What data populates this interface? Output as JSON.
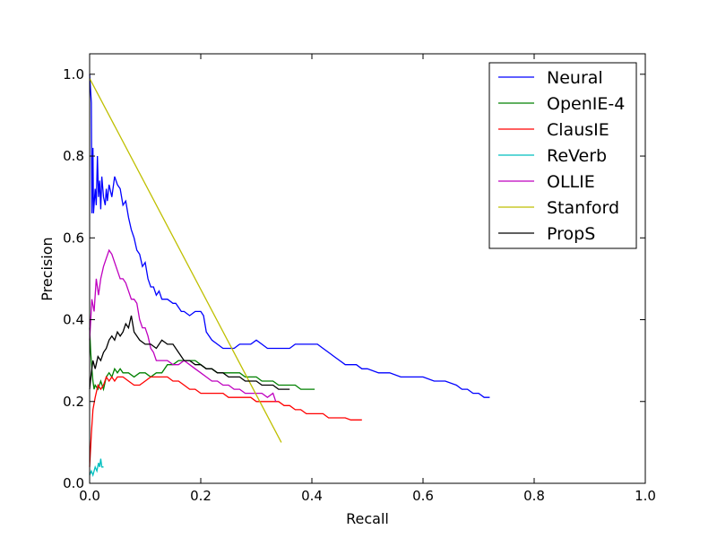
{
  "chart_data": {
    "type": "line",
    "xlabel": "Recall",
    "ylabel": "Precision",
    "xlim": [
      0,
      1.0
    ],
    "ylim": [
      0,
      1.05
    ],
    "xticks": [
      "0.0",
      "0.2",
      "0.4",
      "0.6",
      "0.8",
      "1.0"
    ],
    "xtick_values": [
      0,
      0.2,
      0.4,
      0.6,
      0.8,
      1.0
    ],
    "yticks": [
      "0.0",
      "0.2",
      "0.4",
      "0.6",
      "0.8",
      "1.0"
    ],
    "ytick_values": [
      0,
      0.2,
      0.4,
      0.6,
      0.8,
      1.0
    ],
    "grid": false,
    "legend_position": "top-right",
    "series": [
      {
        "name": "Neural",
        "color": "#0000ff",
        "points": [
          [
            0.0,
            1.0
          ],
          [
            0.003,
            0.93
          ],
          [
            0.004,
            0.66
          ],
          [
            0.006,
            0.82
          ],
          [
            0.007,
            0.66
          ],
          [
            0.01,
            0.72
          ],
          [
            0.012,
            0.68
          ],
          [
            0.014,
            0.8
          ],
          [
            0.016,
            0.7
          ],
          [
            0.018,
            0.74
          ],
          [
            0.02,
            0.67
          ],
          [
            0.022,
            0.75
          ],
          [
            0.025,
            0.7
          ],
          [
            0.028,
            0.68
          ],
          [
            0.03,
            0.72
          ],
          [
            0.032,
            0.69
          ],
          [
            0.035,
            0.73
          ],
          [
            0.04,
            0.7
          ],
          [
            0.045,
            0.75
          ],
          [
            0.05,
            0.73
          ],
          [
            0.055,
            0.72
          ],
          [
            0.06,
            0.68
          ],
          [
            0.065,
            0.69
          ],
          [
            0.07,
            0.65
          ],
          [
            0.075,
            0.62
          ],
          [
            0.08,
            0.6
          ],
          [
            0.085,
            0.57
          ],
          [
            0.09,
            0.56
          ],
          [
            0.095,
            0.53
          ],
          [
            0.1,
            0.54
          ],
          [
            0.105,
            0.5
          ],
          [
            0.11,
            0.48
          ],
          [
            0.115,
            0.48
          ],
          [
            0.12,
            0.46
          ],
          [
            0.125,
            0.47
          ],
          [
            0.13,
            0.45
          ],
          [
            0.135,
            0.45
          ],
          [
            0.14,
            0.45
          ],
          [
            0.15,
            0.44
          ],
          [
            0.155,
            0.44
          ],
          [
            0.16,
            0.43
          ],
          [
            0.165,
            0.42
          ],
          [
            0.17,
            0.42
          ],
          [
            0.18,
            0.41
          ],
          [
            0.19,
            0.42
          ],
          [
            0.2,
            0.42
          ],
          [
            0.205,
            0.41
          ],
          [
            0.21,
            0.37
          ],
          [
            0.215,
            0.36
          ],
          [
            0.22,
            0.35
          ],
          [
            0.23,
            0.34
          ],
          [
            0.24,
            0.33
          ],
          [
            0.25,
            0.33
          ],
          [
            0.26,
            0.33
          ],
          [
            0.27,
            0.34
          ],
          [
            0.28,
            0.34
          ],
          [
            0.29,
            0.34
          ],
          [
            0.3,
            0.35
          ],
          [
            0.31,
            0.34
          ],
          [
            0.32,
            0.33
          ],
          [
            0.33,
            0.33
          ],
          [
            0.34,
            0.33
          ],
          [
            0.35,
            0.33
          ],
          [
            0.36,
            0.33
          ],
          [
            0.37,
            0.34
          ],
          [
            0.38,
            0.34
          ],
          [
            0.39,
            0.34
          ],
          [
            0.4,
            0.34
          ],
          [
            0.41,
            0.34
          ],
          [
            0.42,
            0.33
          ],
          [
            0.43,
            0.32
          ],
          [
            0.44,
            0.31
          ],
          [
            0.45,
            0.3
          ],
          [
            0.46,
            0.29
          ],
          [
            0.47,
            0.29
          ],
          [
            0.48,
            0.29
          ],
          [
            0.49,
            0.28
          ],
          [
            0.5,
            0.28
          ],
          [
            0.52,
            0.27
          ],
          [
            0.54,
            0.27
          ],
          [
            0.56,
            0.26
          ],
          [
            0.58,
            0.26
          ],
          [
            0.6,
            0.26
          ],
          [
            0.62,
            0.25
          ],
          [
            0.64,
            0.25
          ],
          [
            0.66,
            0.24
          ],
          [
            0.67,
            0.23
          ],
          [
            0.68,
            0.23
          ],
          [
            0.69,
            0.22
          ],
          [
            0.7,
            0.22
          ],
          [
            0.71,
            0.21
          ],
          [
            0.72,
            0.21
          ]
        ]
      },
      {
        "name": "OpenIE-4",
        "color": "#008000",
        "points": [
          [
            0.0,
            0.38
          ],
          [
            0.002,
            0.32
          ],
          [
            0.004,
            0.28
          ],
          [
            0.006,
            0.25
          ],
          [
            0.008,
            0.23
          ],
          [
            0.01,
            0.24
          ],
          [
            0.015,
            0.23
          ],
          [
            0.02,
            0.25
          ],
          [
            0.025,
            0.23
          ],
          [
            0.03,
            0.26
          ],
          [
            0.035,
            0.27
          ],
          [
            0.04,
            0.26
          ],
          [
            0.045,
            0.28
          ],
          [
            0.05,
            0.27
          ],
          [
            0.055,
            0.28
          ],
          [
            0.06,
            0.27
          ],
          [
            0.07,
            0.27
          ],
          [
            0.08,
            0.26
          ],
          [
            0.09,
            0.27
          ],
          [
            0.1,
            0.27
          ],
          [
            0.11,
            0.26
          ],
          [
            0.12,
            0.27
          ],
          [
            0.13,
            0.27
          ],
          [
            0.14,
            0.29
          ],
          [
            0.15,
            0.29
          ],
          [
            0.16,
            0.3
          ],
          [
            0.17,
            0.3
          ],
          [
            0.18,
            0.3
          ],
          [
            0.19,
            0.3
          ],
          [
            0.2,
            0.29
          ],
          [
            0.21,
            0.28
          ],
          [
            0.22,
            0.28
          ],
          [
            0.23,
            0.27
          ],
          [
            0.24,
            0.27
          ],
          [
            0.25,
            0.27
          ],
          [
            0.26,
            0.27
          ],
          [
            0.27,
            0.27
          ],
          [
            0.28,
            0.26
          ],
          [
            0.29,
            0.26
          ],
          [
            0.3,
            0.26
          ],
          [
            0.31,
            0.25
          ],
          [
            0.32,
            0.25
          ],
          [
            0.33,
            0.25
          ],
          [
            0.34,
            0.24
          ],
          [
            0.35,
            0.24
          ],
          [
            0.36,
            0.24
          ],
          [
            0.37,
            0.24
          ],
          [
            0.38,
            0.23
          ],
          [
            0.39,
            0.23
          ],
          [
            0.4,
            0.23
          ],
          [
            0.405,
            0.23
          ]
        ]
      },
      {
        "name": "ClausIE",
        "color": "#ff0000",
        "points": [
          [
            0.0,
            0.04
          ],
          [
            0.003,
            0.12
          ],
          [
            0.006,
            0.18
          ],
          [
            0.01,
            0.21
          ],
          [
            0.015,
            0.24
          ],
          [
            0.02,
            0.23
          ],
          [
            0.025,
            0.24
          ],
          [
            0.03,
            0.26
          ],
          [
            0.035,
            0.25
          ],
          [
            0.04,
            0.26
          ],
          [
            0.045,
            0.25
          ],
          [
            0.05,
            0.26
          ],
          [
            0.06,
            0.26
          ],
          [
            0.07,
            0.25
          ],
          [
            0.08,
            0.24
          ],
          [
            0.09,
            0.24
          ],
          [
            0.1,
            0.25
          ],
          [
            0.11,
            0.26
          ],
          [
            0.12,
            0.26
          ],
          [
            0.13,
            0.26
          ],
          [
            0.14,
            0.26
          ],
          [
            0.15,
            0.25
          ],
          [
            0.16,
            0.25
          ],
          [
            0.17,
            0.24
          ],
          [
            0.18,
            0.23
          ],
          [
            0.19,
            0.23
          ],
          [
            0.2,
            0.22
          ],
          [
            0.21,
            0.22
          ],
          [
            0.22,
            0.22
          ],
          [
            0.23,
            0.22
          ],
          [
            0.24,
            0.22
          ],
          [
            0.25,
            0.21
          ],
          [
            0.26,
            0.21
          ],
          [
            0.27,
            0.21
          ],
          [
            0.28,
            0.21
          ],
          [
            0.29,
            0.21
          ],
          [
            0.3,
            0.2
          ],
          [
            0.31,
            0.2
          ],
          [
            0.32,
            0.2
          ],
          [
            0.33,
            0.2
          ],
          [
            0.34,
            0.2
          ],
          [
            0.35,
            0.19
          ],
          [
            0.36,
            0.19
          ],
          [
            0.37,
            0.18
          ],
          [
            0.38,
            0.18
          ],
          [
            0.39,
            0.17
          ],
          [
            0.4,
            0.17
          ],
          [
            0.41,
            0.17
          ],
          [
            0.42,
            0.17
          ],
          [
            0.43,
            0.16
          ],
          [
            0.44,
            0.16
          ],
          [
            0.45,
            0.16
          ],
          [
            0.46,
            0.16
          ],
          [
            0.47,
            0.155
          ],
          [
            0.48,
            0.155
          ],
          [
            0.49,
            0.155
          ]
        ]
      },
      {
        "name": "ReVerb",
        "color": "#00bfbf",
        "points": [
          [
            0.0,
            0.02
          ],
          [
            0.003,
            0.03
          ],
          [
            0.006,
            0.02
          ],
          [
            0.01,
            0.04
          ],
          [
            0.013,
            0.03
          ],
          [
            0.016,
            0.05
          ],
          [
            0.018,
            0.04
          ],
          [
            0.02,
            0.06
          ],
          [
            0.022,
            0.04
          ],
          [
            0.025,
            0.04
          ]
        ]
      },
      {
        "name": "OLLIE",
        "color": "#bf00bf",
        "points": [
          [
            0.0,
            0.35
          ],
          [
            0.004,
            0.45
          ],
          [
            0.008,
            0.42
          ],
          [
            0.012,
            0.5
          ],
          [
            0.016,
            0.46
          ],
          [
            0.02,
            0.5
          ],
          [
            0.025,
            0.53
          ],
          [
            0.03,
            0.55
          ],
          [
            0.035,
            0.57
          ],
          [
            0.04,
            0.56
          ],
          [
            0.045,
            0.54
          ],
          [
            0.05,
            0.52
          ],
          [
            0.055,
            0.5
          ],
          [
            0.06,
            0.5
          ],
          [
            0.065,
            0.49
          ],
          [
            0.07,
            0.47
          ],
          [
            0.075,
            0.45
          ],
          [
            0.08,
            0.45
          ],
          [
            0.085,
            0.44
          ],
          [
            0.09,
            0.4
          ],
          [
            0.095,
            0.38
          ],
          [
            0.1,
            0.38
          ],
          [
            0.105,
            0.36
          ],
          [
            0.11,
            0.33
          ],
          [
            0.115,
            0.32
          ],
          [
            0.12,
            0.3
          ],
          [
            0.13,
            0.3
          ],
          [
            0.14,
            0.3
          ],
          [
            0.15,
            0.29
          ],
          [
            0.16,
            0.29
          ],
          [
            0.17,
            0.3
          ],
          [
            0.18,
            0.29
          ],
          [
            0.19,
            0.28
          ],
          [
            0.2,
            0.27
          ],
          [
            0.21,
            0.26
          ],
          [
            0.22,
            0.25
          ],
          [
            0.23,
            0.25
          ],
          [
            0.24,
            0.24
          ],
          [
            0.25,
            0.24
          ],
          [
            0.26,
            0.23
          ],
          [
            0.27,
            0.23
          ],
          [
            0.28,
            0.22
          ],
          [
            0.29,
            0.22
          ],
          [
            0.3,
            0.22
          ],
          [
            0.31,
            0.22
          ],
          [
            0.32,
            0.21
          ],
          [
            0.33,
            0.22
          ],
          [
            0.335,
            0.2
          ]
        ]
      },
      {
        "name": "Stanford",
        "color": "#bfbf00",
        "points": [
          [
            0.0,
            0.99
          ],
          [
            0.345,
            0.1
          ]
        ]
      },
      {
        "name": "PropS",
        "color": "#000000",
        "points": [
          [
            0.0,
            0.23
          ],
          [
            0.003,
            0.27
          ],
          [
            0.006,
            0.3
          ],
          [
            0.01,
            0.28
          ],
          [
            0.015,
            0.31
          ],
          [
            0.02,
            0.3
          ],
          [
            0.025,
            0.32
          ],
          [
            0.03,
            0.33
          ],
          [
            0.035,
            0.35
          ],
          [
            0.04,
            0.36
          ],
          [
            0.045,
            0.35
          ],
          [
            0.05,
            0.37
          ],
          [
            0.055,
            0.36
          ],
          [
            0.06,
            0.37
          ],
          [
            0.065,
            0.39
          ],
          [
            0.07,
            0.38
          ],
          [
            0.075,
            0.41
          ],
          [
            0.08,
            0.37
          ],
          [
            0.085,
            0.36
          ],
          [
            0.09,
            0.35
          ],
          [
            0.1,
            0.34
          ],
          [
            0.11,
            0.34
          ],
          [
            0.12,
            0.33
          ],
          [
            0.13,
            0.35
          ],
          [
            0.14,
            0.34
          ],
          [
            0.15,
            0.34
          ],
          [
            0.16,
            0.32
          ],
          [
            0.17,
            0.3
          ],
          [
            0.18,
            0.3
          ],
          [
            0.19,
            0.29
          ],
          [
            0.2,
            0.29
          ],
          [
            0.21,
            0.28
          ],
          [
            0.22,
            0.28
          ],
          [
            0.23,
            0.27
          ],
          [
            0.24,
            0.27
          ],
          [
            0.25,
            0.26
          ],
          [
            0.26,
            0.26
          ],
          [
            0.27,
            0.26
          ],
          [
            0.28,
            0.25
          ],
          [
            0.29,
            0.25
          ],
          [
            0.3,
            0.25
          ],
          [
            0.31,
            0.24
          ],
          [
            0.32,
            0.24
          ],
          [
            0.33,
            0.24
          ],
          [
            0.34,
            0.23
          ],
          [
            0.35,
            0.23
          ],
          [
            0.36,
            0.23
          ]
        ]
      }
    ]
  }
}
